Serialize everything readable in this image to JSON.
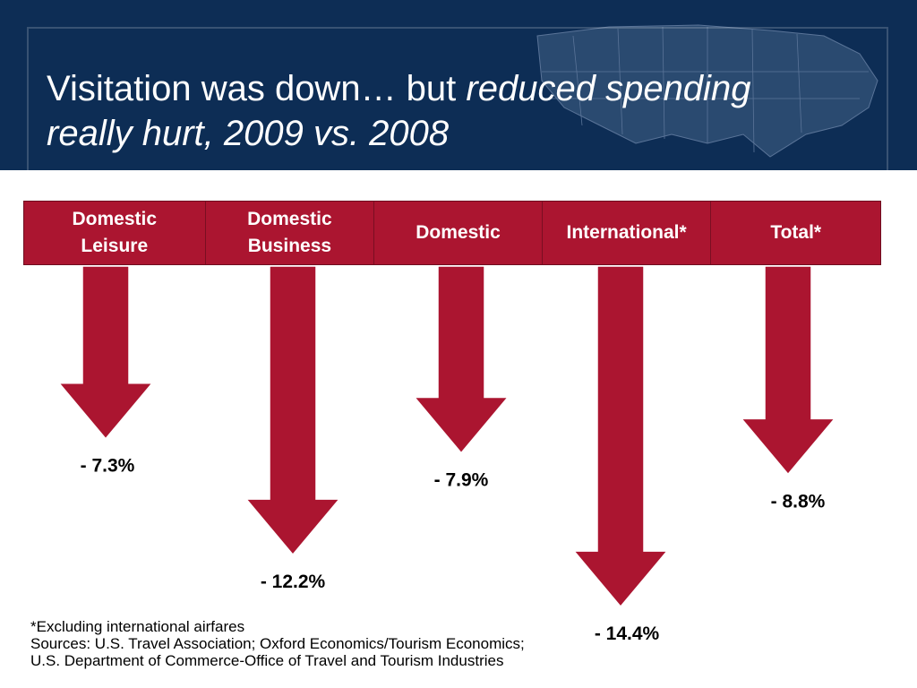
{
  "title": {
    "plain": "Visitation was down… but ",
    "italic_1": "reduced spending",
    "italic_2": "really hurt, 2009 vs. 2008"
  },
  "chart_data": {
    "type": "bar",
    "categories": [
      "Domestic\nLeisure",
      "Domestic\nBusiness",
      "Domestic",
      "International*",
      "Total*"
    ],
    "values": [
      -7.3,
      -12.2,
      -7.9,
      -14.4,
      -8.8
    ],
    "value_labels": [
      "- 7.3%",
      "- 12.2%",
      "- 7.9%",
      "- 14.4%",
      "- 8.8%"
    ],
    "orientation": "downward arrows",
    "title": "",
    "xlabel": "",
    "ylabel": "",
    "grid": false,
    "colors": {
      "arrow": "#ab1530",
      "header": "#ab1530",
      "banner": "#0d2d55"
    }
  },
  "footnote": {
    "line1": "*Excluding international airfares",
    "line2": "Sources: U.S. Travel Association; Oxford Economics/Tourism Economics;",
    "line3": "U.S. Department of Commerce-Office of Travel and Tourism Industries"
  }
}
